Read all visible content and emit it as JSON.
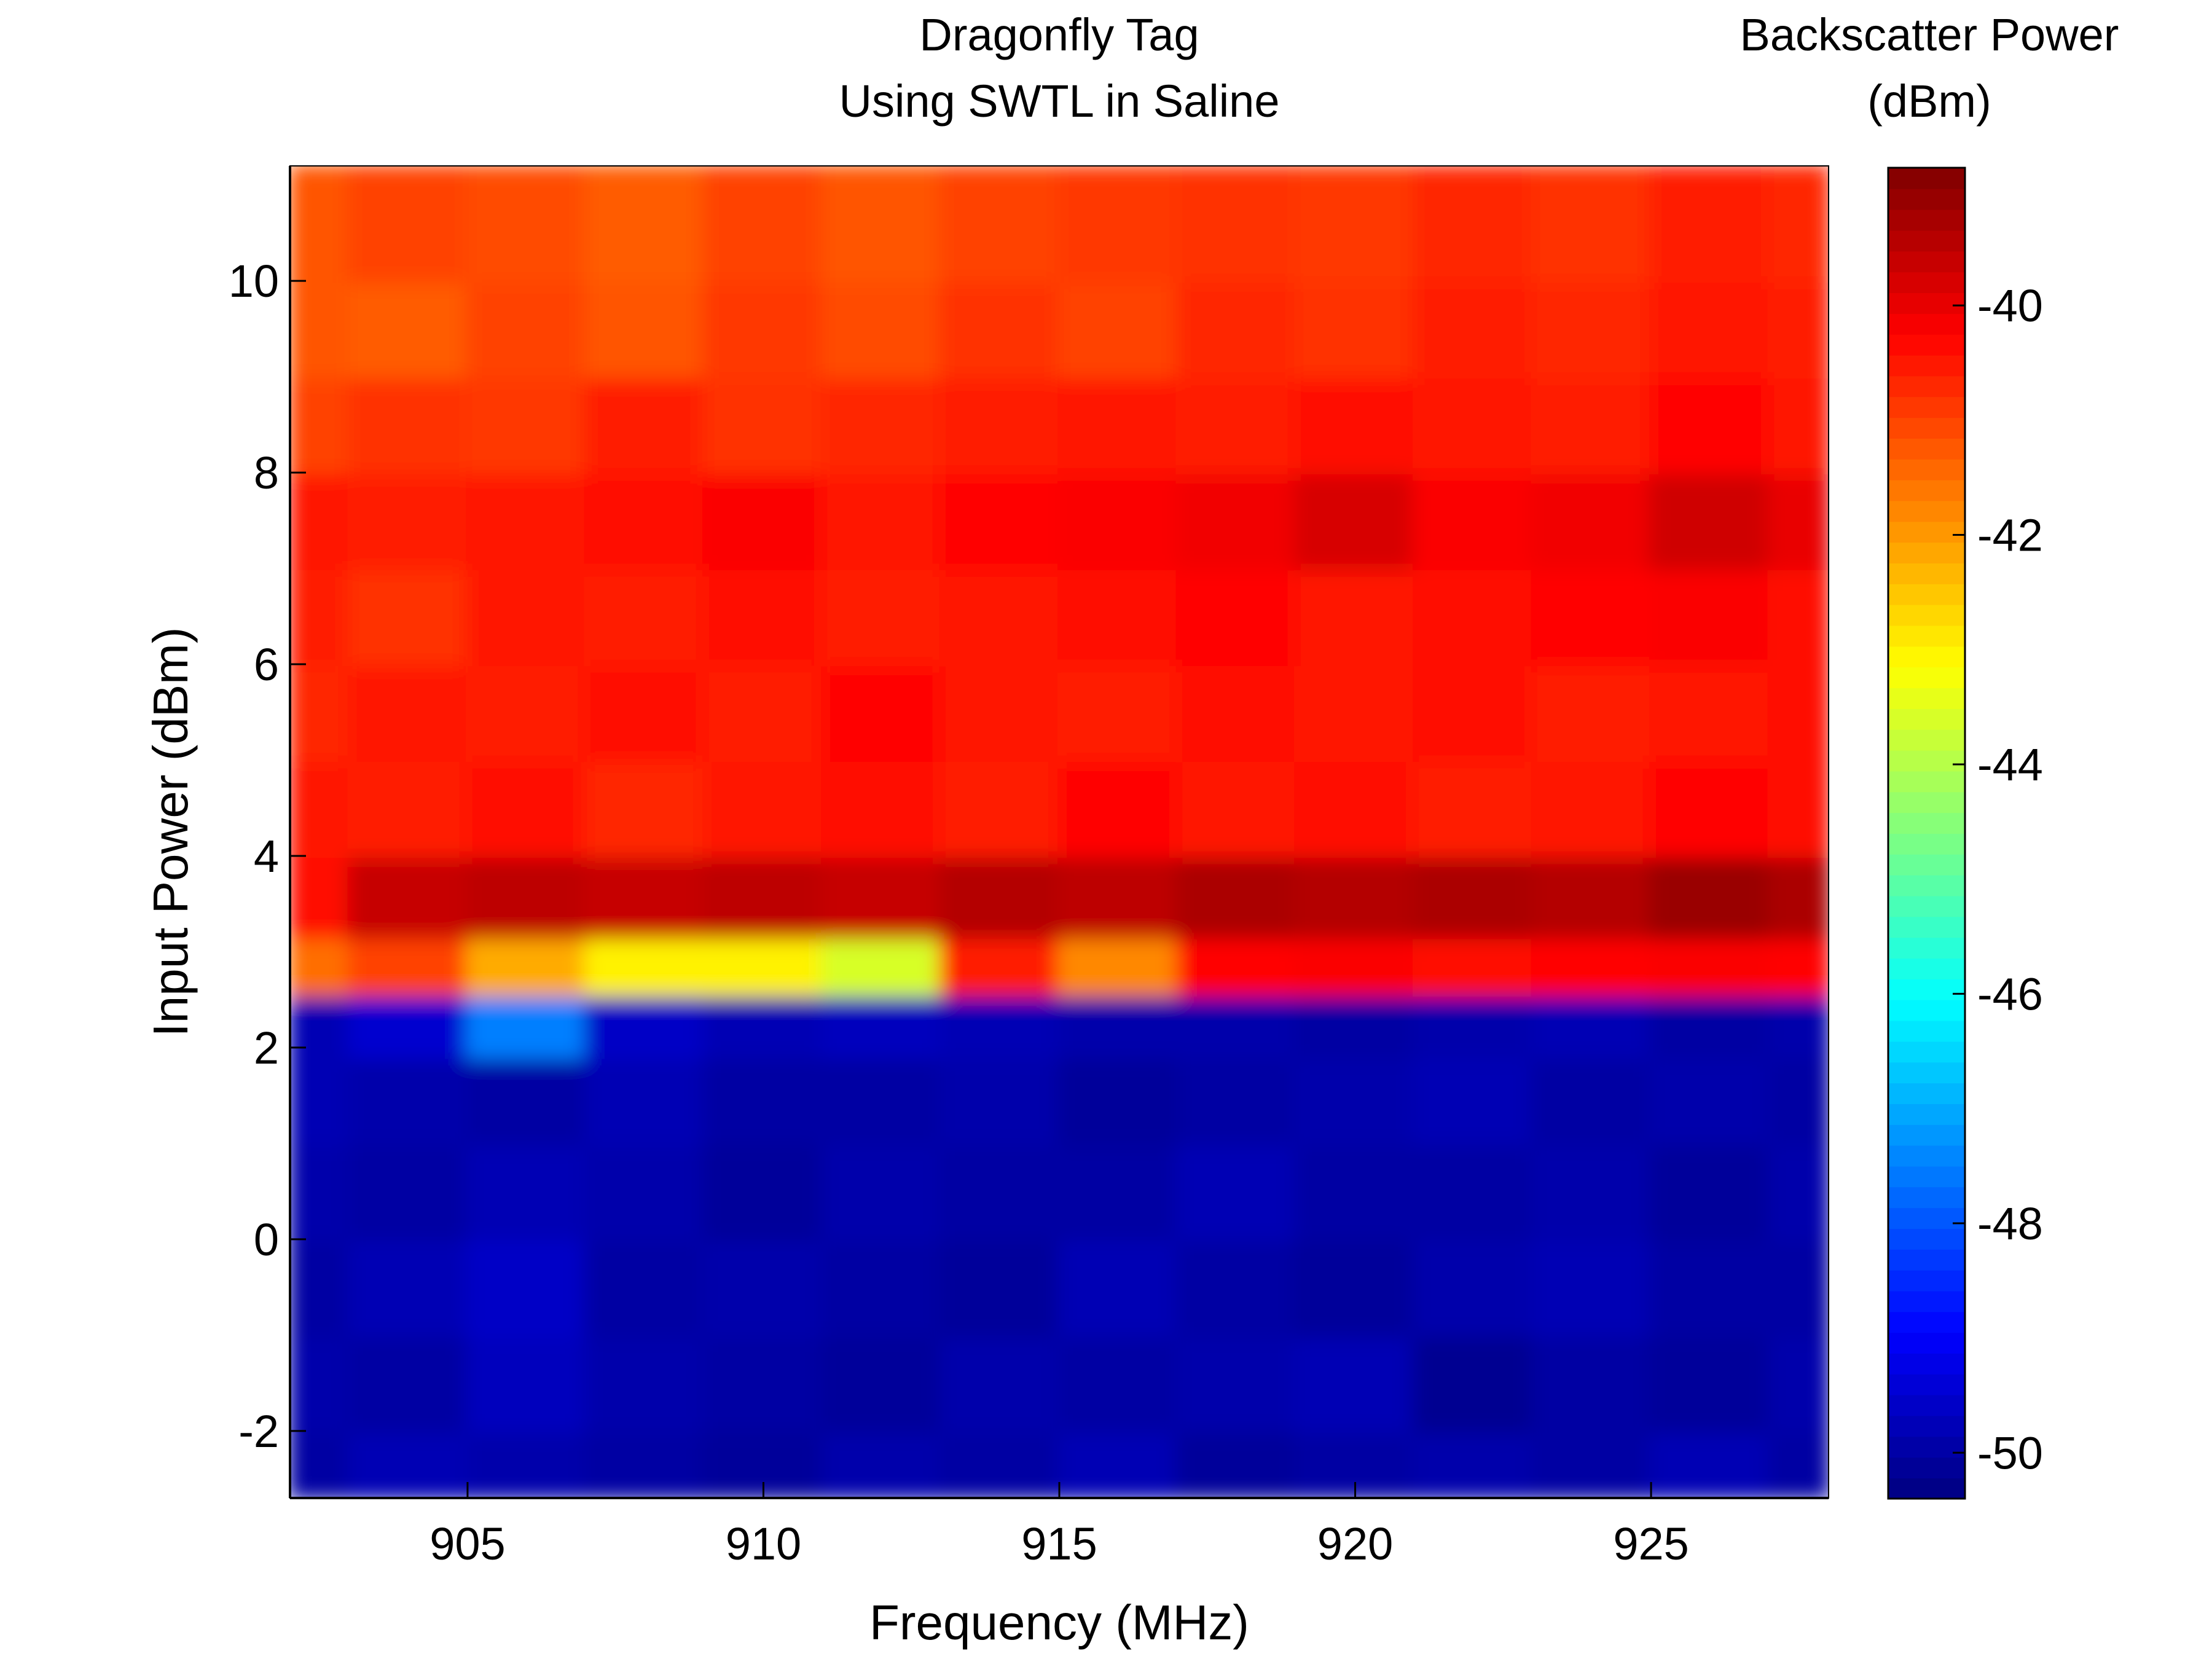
{
  "chart_data": {
    "type": "heatmap",
    "title": [
      "Dragonfly Tag",
      "Using SWTL in Saline"
    ],
    "xlabel": "Frequency (MHz)",
    "ylabel": "Input Power (dBm)",
    "colorbar_label": [
      "Backscatter Power",
      "(dBm)"
    ],
    "xlim": [
      902,
      928
    ],
    "ylim": [
      -2.7,
      11.2
    ],
    "clim": [
      -50.4,
      -38.8
    ],
    "colormap": "jet",
    "x_ticks": [
      905,
      910,
      915,
      920,
      925
    ],
    "y_ticks": [
      -2,
      0,
      2,
      4,
      6,
      8,
      10
    ],
    "colorbar_ticks": [
      -50,
      -48,
      -46,
      -44,
      -42,
      -40
    ],
    "x_tick_labels": [
      "905",
      "910",
      "915",
      "920",
      "925"
    ],
    "y_tick_labels": [
      "-2",
      "0",
      "2",
      "4",
      "6",
      "8",
      "10"
    ],
    "colorbar_tick_labels": [
      "-50",
      "-48",
      "-46",
      "-44",
      "-42",
      "-40"
    ],
    "x": [
      902,
      904,
      906,
      908,
      910,
      912,
      914,
      916,
      918,
      920,
      922,
      924,
      926,
      928
    ],
    "y": [
      -2.5,
      -1.5,
      -0.5,
      0.5,
      1.5,
      2.3,
      2.8,
      3.5,
      4.5,
      5.5,
      6.5,
      7.5,
      8.5,
      9.5,
      10.5
    ],
    "z": [
      [
        -50.0,
        -49.8,
        -49.9,
        -50.0,
        -50.1,
        -49.9,
        -50.0,
        -49.8,
        -50.1,
        -50.0,
        -49.9,
        -50.0,
        -49.8,
        -50.0
      ],
      [
        -49.9,
        -50.0,
        -49.7,
        -49.9,
        -50.0,
        -50.1,
        -49.9,
        -50.0,
        -49.9,
        -49.8,
        -50.2,
        -50.0,
        -50.1,
        -49.9
      ],
      [
        -50.0,
        -49.8,
        -49.6,
        -50.0,
        -49.9,
        -50.0,
        -50.1,
        -49.8,
        -50.0,
        -50.1,
        -49.9,
        -49.8,
        -50.0,
        -50.0
      ],
      [
        -49.9,
        -50.0,
        -49.8,
        -49.9,
        -50.1,
        -49.9,
        -50.0,
        -50.0,
        -49.8,
        -50.0,
        -50.0,
        -49.9,
        -50.1,
        -49.9
      ],
      [
        -49.8,
        -49.9,
        -50.0,
        -49.8,
        -50.0,
        -50.0,
        -49.9,
        -50.1,
        -50.0,
        -49.9,
        -49.8,
        -50.0,
        -49.9,
        -50.0
      ],
      [
        -49.8,
        -49.5,
        -47.5,
        -49.6,
        -49.8,
        -49.7,
        -49.8,
        -49.9,
        -49.9,
        -50.0,
        -49.9,
        -49.8,
        -50.0,
        -49.9
      ],
      [
        -41.5,
        -41.0,
        -42.2,
        -43.0,
        -43.0,
        -43.6,
        -40.6,
        -41.8,
        -40.3,
        -40.2,
        -40.4,
        -40.3,
        -40.2,
        -40.3
      ],
      [
        -40.4,
        -39.6,
        -39.5,
        -39.6,
        -39.5,
        -39.6,
        -39.4,
        -39.5,
        -39.3,
        -39.4,
        -39.3,
        -39.4,
        -39.1,
        -39.3
      ],
      [
        -40.5,
        -40.6,
        -40.4,
        -40.7,
        -40.5,
        -40.4,
        -40.6,
        -40.3,
        -40.5,
        -40.4,
        -40.6,
        -40.5,
        -40.3,
        -40.4
      ],
      [
        -40.7,
        -40.5,
        -40.6,
        -40.4,
        -40.6,
        -40.3,
        -40.5,
        -40.6,
        -40.4,
        -40.5,
        -40.4,
        -40.6,
        -40.5,
        -40.4
      ],
      [
        -40.6,
        -40.8,
        -40.5,
        -40.6,
        -40.4,
        -40.6,
        -40.5,
        -40.4,
        -40.3,
        -40.5,
        -40.4,
        -40.3,
        -40.2,
        -40.4
      ],
      [
        -40.5,
        -40.6,
        -40.5,
        -40.4,
        -40.2,
        -40.5,
        -40.3,
        -40.2,
        -40.1,
        -39.8,
        -40.2,
        -40.1,
        -39.7,
        -40.0
      ],
      [
        -41.0,
        -40.8,
        -40.9,
        -40.6,
        -40.8,
        -40.7,
        -40.6,
        -40.5,
        -40.6,
        -40.4,
        -40.5,
        -40.6,
        -40.3,
        -40.5
      ],
      [
        -41.2,
        -41.3,
        -41.0,
        -41.2,
        -40.9,
        -41.1,
        -40.8,
        -41.0,
        -40.7,
        -40.8,
        -40.6,
        -40.7,
        -40.5,
        -40.6
      ],
      [
        -41.2,
        -41.0,
        -41.1,
        -41.3,
        -41.0,
        -41.2,
        -41.0,
        -40.9,
        -40.8,
        -40.9,
        -40.7,
        -40.8,
        -40.6,
        -40.7
      ]
    ]
  }
}
